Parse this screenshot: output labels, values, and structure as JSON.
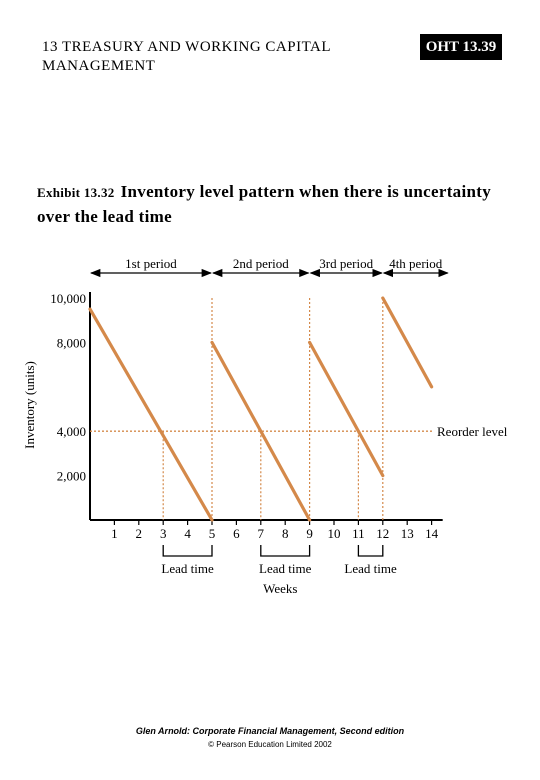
{
  "header": {
    "title": "13 TREASURY AND WORKING CAPITAL MANAGEMENT",
    "badge": "OHT 13.39"
  },
  "exhibit": {
    "number": "Exhibit 13.32",
    "title": "Inventory level pattern when there is uncertainty over the lead time"
  },
  "chart_data": {
    "type": "line",
    "title": "Inventory level pattern when there is uncertainty over the lead time",
    "xlabel": "Weeks",
    "ylabel": "Inventory (units)",
    "xlim": [
      0,
      14.7
    ],
    "ylim": [
      0,
      10000
    ],
    "x_ticks": [
      1,
      2,
      3,
      4,
      5,
      6,
      7,
      8,
      9,
      10,
      11,
      12,
      13,
      14
    ],
    "y_ticks": [
      {
        "value": 10000,
        "label": "10,000"
      },
      {
        "value": 8000,
        "label": "8,000"
      },
      {
        "value": 4000,
        "label": "4,000"
      },
      {
        "value": 2000,
        "label": "2,000"
      }
    ],
    "color": "#d4894a",
    "series": [
      {
        "segments": [
          {
            "x": [
              0,
              5
            ],
            "y": [
              9500,
              0
            ]
          },
          {
            "x": [
              5,
              9
            ],
            "y": [
              8000,
              0
            ]
          },
          {
            "x": [
              9,
              12
            ],
            "y": [
              8000,
              2000
            ]
          },
          {
            "x": [
              12,
              14
            ],
            "y": [
              10000,
              6000
            ]
          }
        ]
      }
    ],
    "reorder_level": {
      "value": 4000,
      "label": "Reorder level"
    },
    "restock_lines": [
      5,
      9,
      12
    ],
    "periods": [
      {
        "label": "1st period",
        "from": 0,
        "to": 5
      },
      {
        "label": "2nd period",
        "from": 5,
        "to": 9
      },
      {
        "label": "3rd period",
        "from": 9,
        "to": 12
      },
      {
        "label": "4th period",
        "from": 12,
        "to": 14.7
      }
    ],
    "lead_times": [
      {
        "label": "Lead time",
        "from": 3,
        "to": 5
      },
      {
        "label": "Lead time",
        "from": 7,
        "to": 9
      },
      {
        "label": "Lead time",
        "from": 11,
        "to": 12
      }
    ]
  },
  "footer": {
    "line1": "Glen Arnold: Corporate Financial Management, Second edition",
    "line2": "© Pearson Education Limited 2002"
  }
}
